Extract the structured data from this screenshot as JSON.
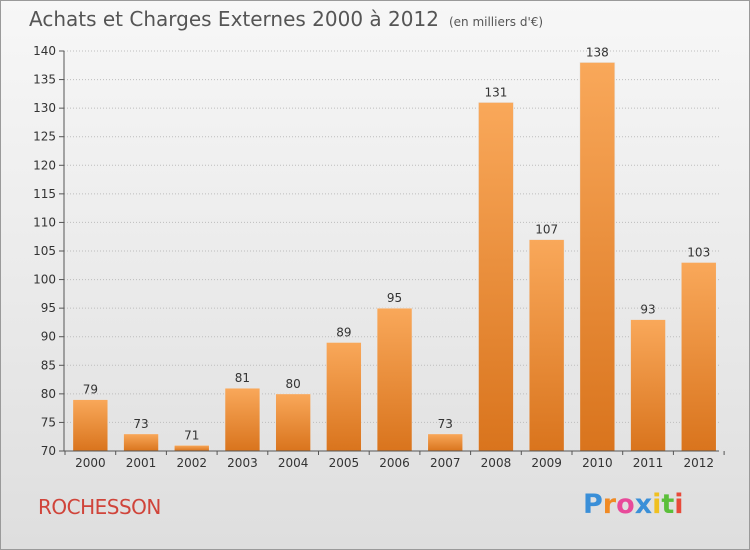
{
  "title": "Achats et Charges Externes 2000 à 2012",
  "subtitle": "(en milliers d'€)",
  "commune": "ROCHESSON",
  "brand": {
    "letters": [
      "P",
      "r",
      "o",
      "x",
      "i",
      "t",
      "i"
    ],
    "colors": [
      "#3a8fd8",
      "#f08a24",
      "#e84a9a",
      "#3a8fd8",
      "#f0c020",
      "#5bbf3a",
      "#e84a3a"
    ]
  },
  "colors": {
    "bar_light": "#f9a85a",
    "bar_dark": "#d9741d",
    "axis": "#555555",
    "grid": "#bdbdbd"
  },
  "chart_data": {
    "type": "bar",
    "categories": [
      "2000",
      "2001",
      "2002",
      "2003",
      "2004",
      "2005",
      "2006",
      "2007",
      "2008",
      "2009",
      "2010",
      "2011",
      "2012"
    ],
    "values": [
      79,
      73,
      71,
      81,
      80,
      89,
      95,
      73,
      131,
      107,
      138,
      93,
      103
    ],
    "ylim": [
      70,
      140
    ],
    "yticks": [
      70,
      75,
      80,
      85,
      90,
      95,
      100,
      105,
      110,
      115,
      120,
      125,
      130,
      135,
      140
    ],
    "title": "Achats et Charges Externes 2000 à 2012",
    "xlabel": "",
    "ylabel": "",
    "grid": true,
    "data_labels": true
  }
}
